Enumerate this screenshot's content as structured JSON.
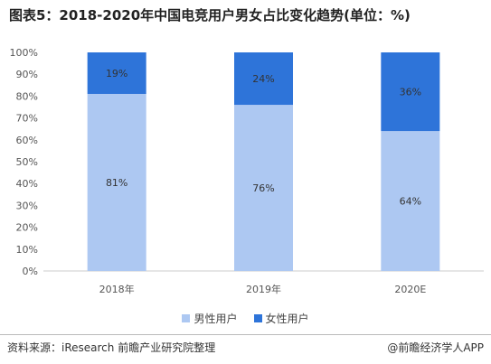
{
  "header": {
    "title": "图表5：2018-2020年中国电竞用户男女占比变化趋势(单位：%)"
  },
  "footer": {
    "source": "资料来源：iResearch 前瞻产业研究院整理",
    "brand": "@前瞻经济学人APP"
  },
  "colors": {
    "male": "#adc8f2",
    "female": "#2e74d9",
    "axis": "#cccccc"
  },
  "chart_data": {
    "type": "bar",
    "stacked": true,
    "categories": [
      "2018年",
      "2019年",
      "2020E"
    ],
    "series": [
      {
        "name": "男性用户",
        "values": [
          81,
          76,
          64
        ],
        "labels": [
          "81%",
          "76%",
          "64%"
        ]
      },
      {
        "name": "女性用户",
        "values": [
          19,
          24,
          36
        ],
        "labels": [
          "19%",
          "24%",
          "36%"
        ]
      }
    ],
    "ylim": [
      0,
      100
    ],
    "yticks": [
      "0%",
      "10%",
      "20%",
      "30%",
      "40%",
      "50%",
      "60%",
      "70%",
      "80%",
      "90%",
      "100%"
    ],
    "legend_position": "bottom",
    "grid": false
  }
}
